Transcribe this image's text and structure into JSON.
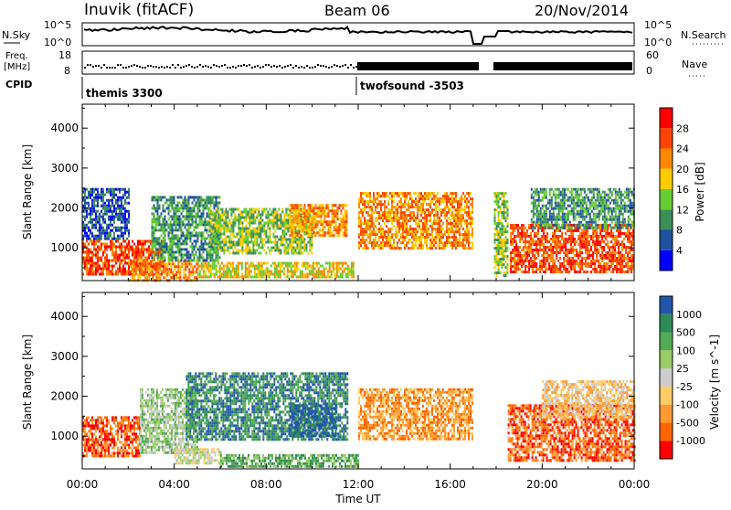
{
  "header": {
    "station": "Inuvik (fitACF)",
    "beam": "Beam 06",
    "date": "20/Nov/2014"
  },
  "noise_panel": {
    "left_label": "N.Sky",
    "right_label": "N.Search",
    "tick_top": "10^5",
    "tick_bottom": "10^0"
  },
  "freq_panel": {
    "left_label_line1": "Freq.",
    "left_label_line2": "[MHz]",
    "right_label": "Nave",
    "left_ticks": [
      "18",
      "8"
    ],
    "right_ticks": [
      "60",
      "0"
    ]
  },
  "cpid": {
    "label": "CPID",
    "modes": [
      "themis 3300",
      "twofsound -3503"
    ]
  },
  "colors": {
    "power": [
      "#0000ff",
      "#2050a0",
      "#3a8f5a",
      "#66cc33",
      "#ffcc00",
      "#ff8800",
      "#ff4400",
      "#ff0000"
    ],
    "velocity": [
      "#ff0000",
      "#ff6600",
      "#ff9933",
      "#ffcc66",
      "#cccccc",
      "#99cc66",
      "#55aa55",
      "#2e8b57",
      "#2255aa"
    ]
  },
  "chart_data": [
    {
      "type": "heatmap",
      "title": "Power",
      "xlabel": "",
      "ylabel": "Slant Range [km]",
      "colorbar_label": "Power [dB]",
      "colorbar_ticks": [
        4,
        8,
        12,
        16,
        20,
        24,
        28
      ],
      "colorbar_range": [
        0,
        32
      ],
      "ylim": [
        180,
        4600
      ],
      "yticks": [
        1000,
        2000,
        3000,
        4000
      ],
      "xlim": [
        0,
        24
      ],
      "xtick_labels": [],
      "bands": [
        {
          "t0": 0.0,
          "t1": 3.5,
          "r0": 350,
          "r1": 1200,
          "level": 28
        },
        {
          "t0": 0.0,
          "t1": 2.0,
          "r0": 1250,
          "r1": 2500,
          "level": 8
        },
        {
          "t0": 2.0,
          "t1": 5.0,
          "r0": 200,
          "r1": 700,
          "level": 24
        },
        {
          "t0": 3.0,
          "t1": 6.0,
          "r0": 700,
          "r1": 2300,
          "level": 12
        },
        {
          "t0": 5.0,
          "t1": 11.8,
          "r0": 250,
          "r1": 650,
          "level": 20
        },
        {
          "t0": 5.5,
          "t1": 10.0,
          "r0": 900,
          "r1": 2000,
          "level": 16
        },
        {
          "t0": 9.0,
          "t1": 11.5,
          "r0": 1300,
          "r1": 2100,
          "level": 24
        },
        {
          "t0": 12.0,
          "t1": 17.0,
          "r0": 1000,
          "r1": 2400,
          "level": 24
        },
        {
          "t0": 17.9,
          "t1": 18.5,
          "r0": 300,
          "r1": 2400,
          "level": 16
        },
        {
          "t0": 18.6,
          "t1": 24.0,
          "r0": 400,
          "r1": 1600,
          "level": 28
        },
        {
          "t0": 19.5,
          "t1": 24.0,
          "r0": 1500,
          "r1": 2500,
          "level": 12
        }
      ]
    },
    {
      "type": "heatmap",
      "title": "Velocity",
      "xlabel": "Time UT",
      "ylabel": "Slant Range [km]",
      "colorbar_label": "Velocity [m s^-1]",
      "colorbar_ticks": [
        "-1000",
        "-500",
        "-100",
        "-25",
        "25",
        "100",
        "500",
        "1000"
      ],
      "ylim": [
        180,
        4600
      ],
      "yticks": [
        1000,
        2000,
        3000,
        4000
      ],
      "xlim": [
        0,
        24
      ],
      "xtick_labels": [
        "00:00",
        "04:00",
        "08:00",
        "12:00",
        "16:00",
        "20:00",
        "00:00"
      ],
      "bands": [
        {
          "t0": 0.0,
          "t1": 2.5,
          "r0": 500,
          "r1": 1500,
          "level": 1
        },
        {
          "t0": 2.5,
          "t1": 5.0,
          "r0": 600,
          "r1": 2200,
          "level": 5
        },
        {
          "t0": 4.5,
          "t1": 11.5,
          "r0": 900,
          "r1": 2600,
          "level": 7
        },
        {
          "t0": 4.0,
          "t1": 6.0,
          "r0": 300,
          "r1": 700,
          "level": 4
        },
        {
          "t0": 6.0,
          "t1": 12.0,
          "r0": 250,
          "r1": 550,
          "level": 6
        },
        {
          "t0": 9.0,
          "t1": 11.0,
          "r0": 1000,
          "r1": 1800,
          "level": 8
        },
        {
          "t0": 12.0,
          "t1": 17.0,
          "r0": 900,
          "r1": 2200,
          "level": 2
        },
        {
          "t0": 18.5,
          "t1": 24.0,
          "r0": 400,
          "r1": 1800,
          "level": 1
        },
        {
          "t0": 20.0,
          "t1": 24.0,
          "r0": 1500,
          "r1": 2400,
          "level": 3
        }
      ]
    }
  ]
}
